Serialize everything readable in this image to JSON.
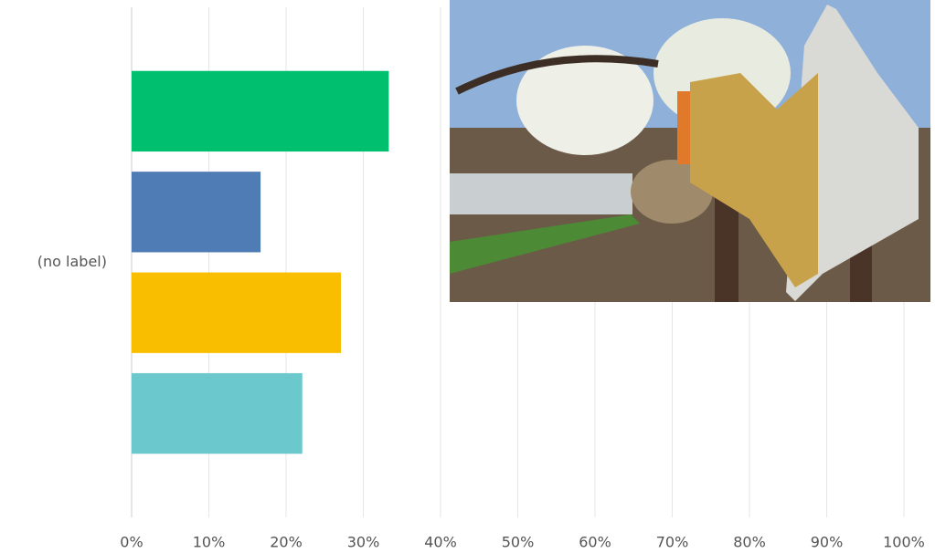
{
  "chart_data": {
    "type": "hbar",
    "categories": [
      "(no label)"
    ],
    "series": [
      {
        "color": "#00bf6f",
        "values": [
          33.3
        ]
      },
      {
        "color": "#507cb6",
        "values": [
          16.7
        ]
      },
      {
        "color": "#f9be00",
        "values": [
          27.1
        ]
      },
      {
        "color": "#6bc8cd",
        "values": [
          22.1
        ]
      }
    ],
    "xlim": [
      0,
      100
    ],
    "xticks": [
      {
        "value": 0,
        "label": "0%"
      },
      {
        "value": 10,
        "label": "10%"
      },
      {
        "value": 20,
        "label": "20%"
      },
      {
        "value": 30,
        "label": "30%"
      },
      {
        "value": 40,
        "label": "40%"
      },
      {
        "value": 50,
        "label": "50%"
      },
      {
        "value": 60,
        "label": "60%"
      },
      {
        "value": 70,
        "label": "70%"
      },
      {
        "value": 80,
        "label": "80%"
      },
      {
        "value": 90,
        "label": "90%"
      },
      {
        "value": 100,
        "label": "100%"
      }
    ],
    "grid": true
  }
}
